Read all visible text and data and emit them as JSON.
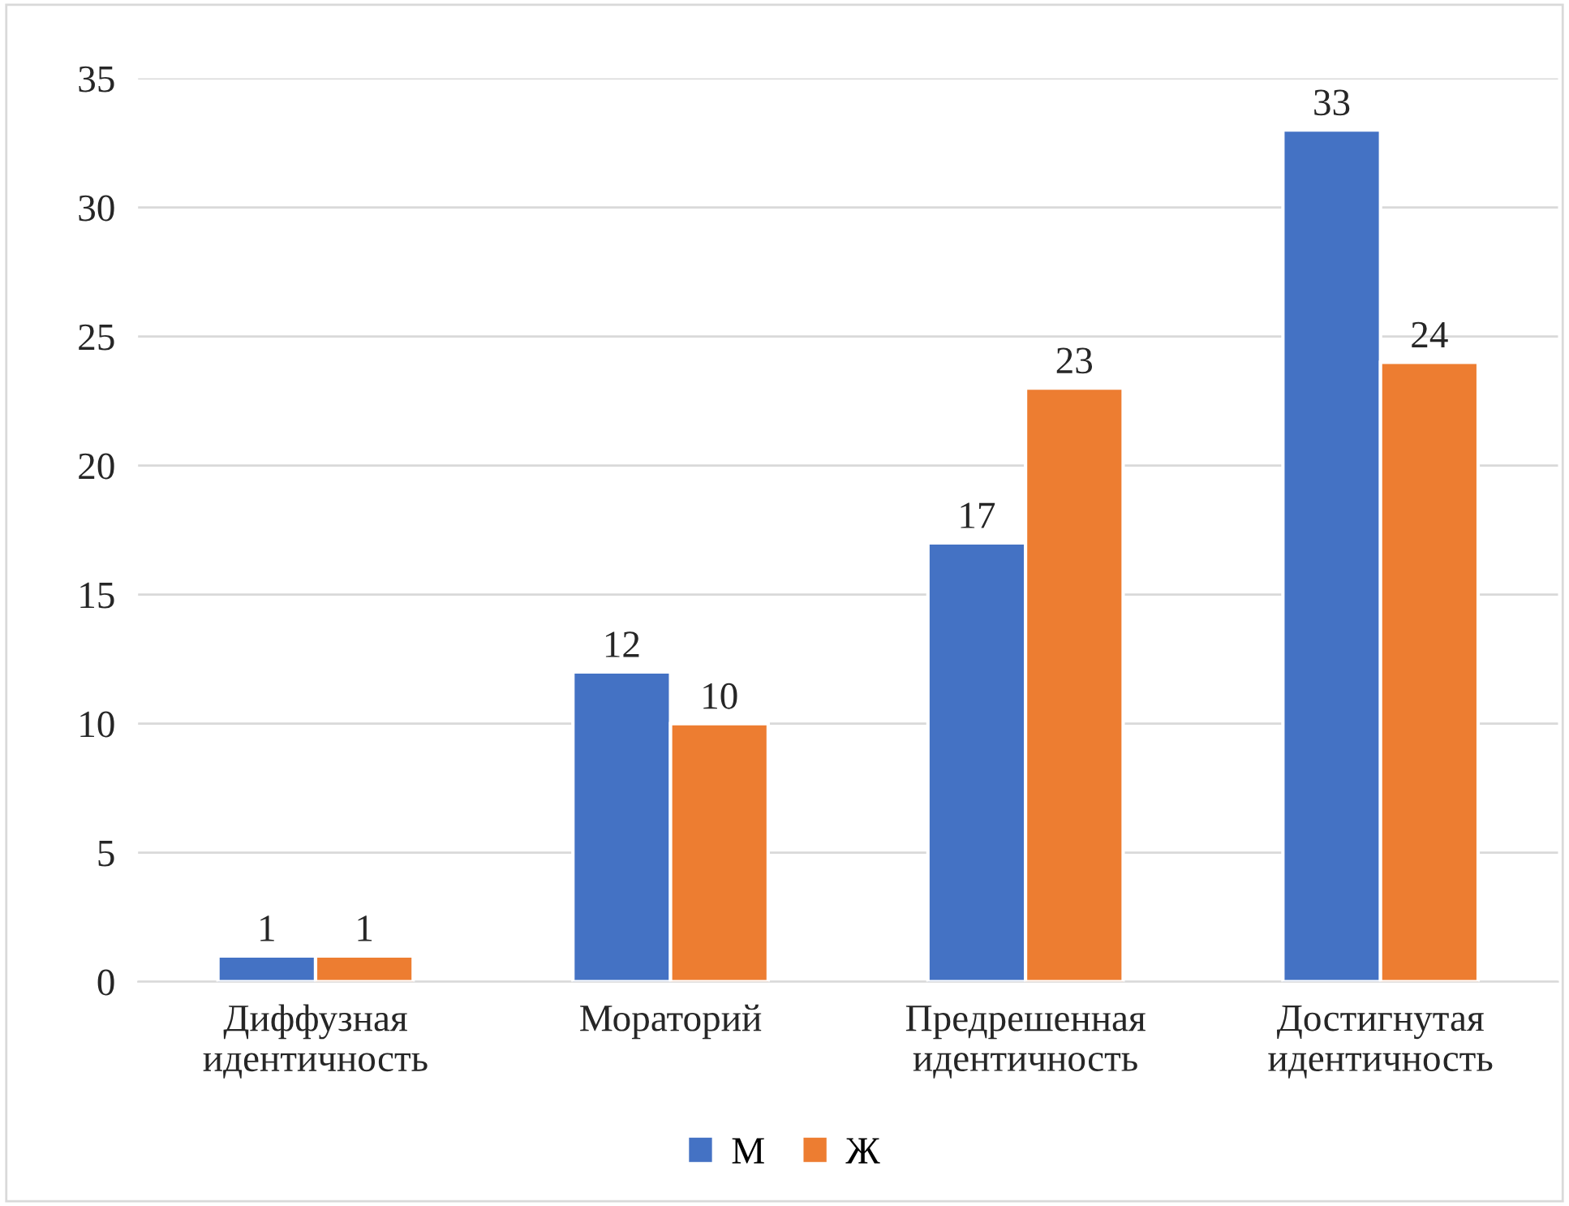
{
  "chart_data": {
    "type": "bar",
    "categories": [
      "Диффузная\nидентичность",
      "Мораторий",
      "Предрешенная\nидентичность",
      "Достигнутая\nидентичность"
    ],
    "series": [
      {
        "name": "М",
        "color": "#4472c4",
        "values": [
          1,
          12,
          17,
          33
        ]
      },
      {
        "name": "Ж",
        "color": "#ed7d31",
        "values": [
          1,
          10,
          23,
          24
        ]
      }
    ],
    "ylim": [
      0,
      35
    ],
    "yticks": [
      0,
      5,
      10,
      15,
      20,
      25,
      30,
      35
    ],
    "grid": "y",
    "legend": "bottom",
    "data_labels": true
  }
}
